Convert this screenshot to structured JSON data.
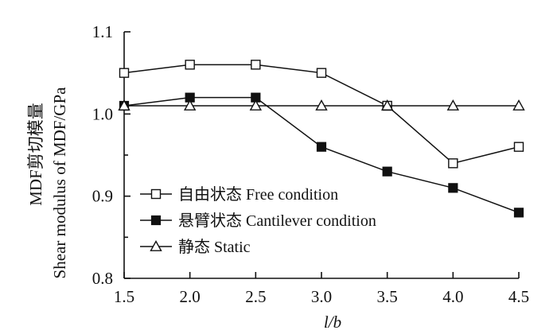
{
  "chart_data": {
    "type": "line",
    "x": [
      1.5,
      2.0,
      2.5,
      3.0,
      3.5,
      4.0,
      4.5
    ],
    "x_ticks": [
      "1.5",
      "2.0",
      "2.5",
      "3.0",
      "3.5",
      "4.0",
      "4.5"
    ],
    "y_ticks": [
      "0.8",
      "0.9",
      "1.0",
      "1.1"
    ],
    "xlim": [
      1.5,
      4.5
    ],
    "ylim": [
      0.8,
      1.1
    ],
    "xlabel": "l/b",
    "ylabel_cn": "MDF剪切模量",
    "ylabel_en": "Shear modulus of MDF/GPa",
    "grid": false,
    "legend_position": "bottom-left",
    "series": [
      {
        "name": "自由状态 Free condition",
        "marker": "open-square",
        "values": [
          1.05,
          1.06,
          1.06,
          1.05,
          1.01,
          0.94,
          0.96
        ]
      },
      {
        "name": "悬臂状态 Cantilever condition",
        "marker": "filled-square",
        "values": [
          1.01,
          1.02,
          1.02,
          0.96,
          0.93,
          0.91,
          0.88
        ]
      },
      {
        "name": "静态 Static",
        "marker": "open-triangle",
        "values": [
          1.01,
          1.01,
          1.01,
          1.01,
          1.01,
          1.01,
          1.01
        ]
      }
    ]
  }
}
